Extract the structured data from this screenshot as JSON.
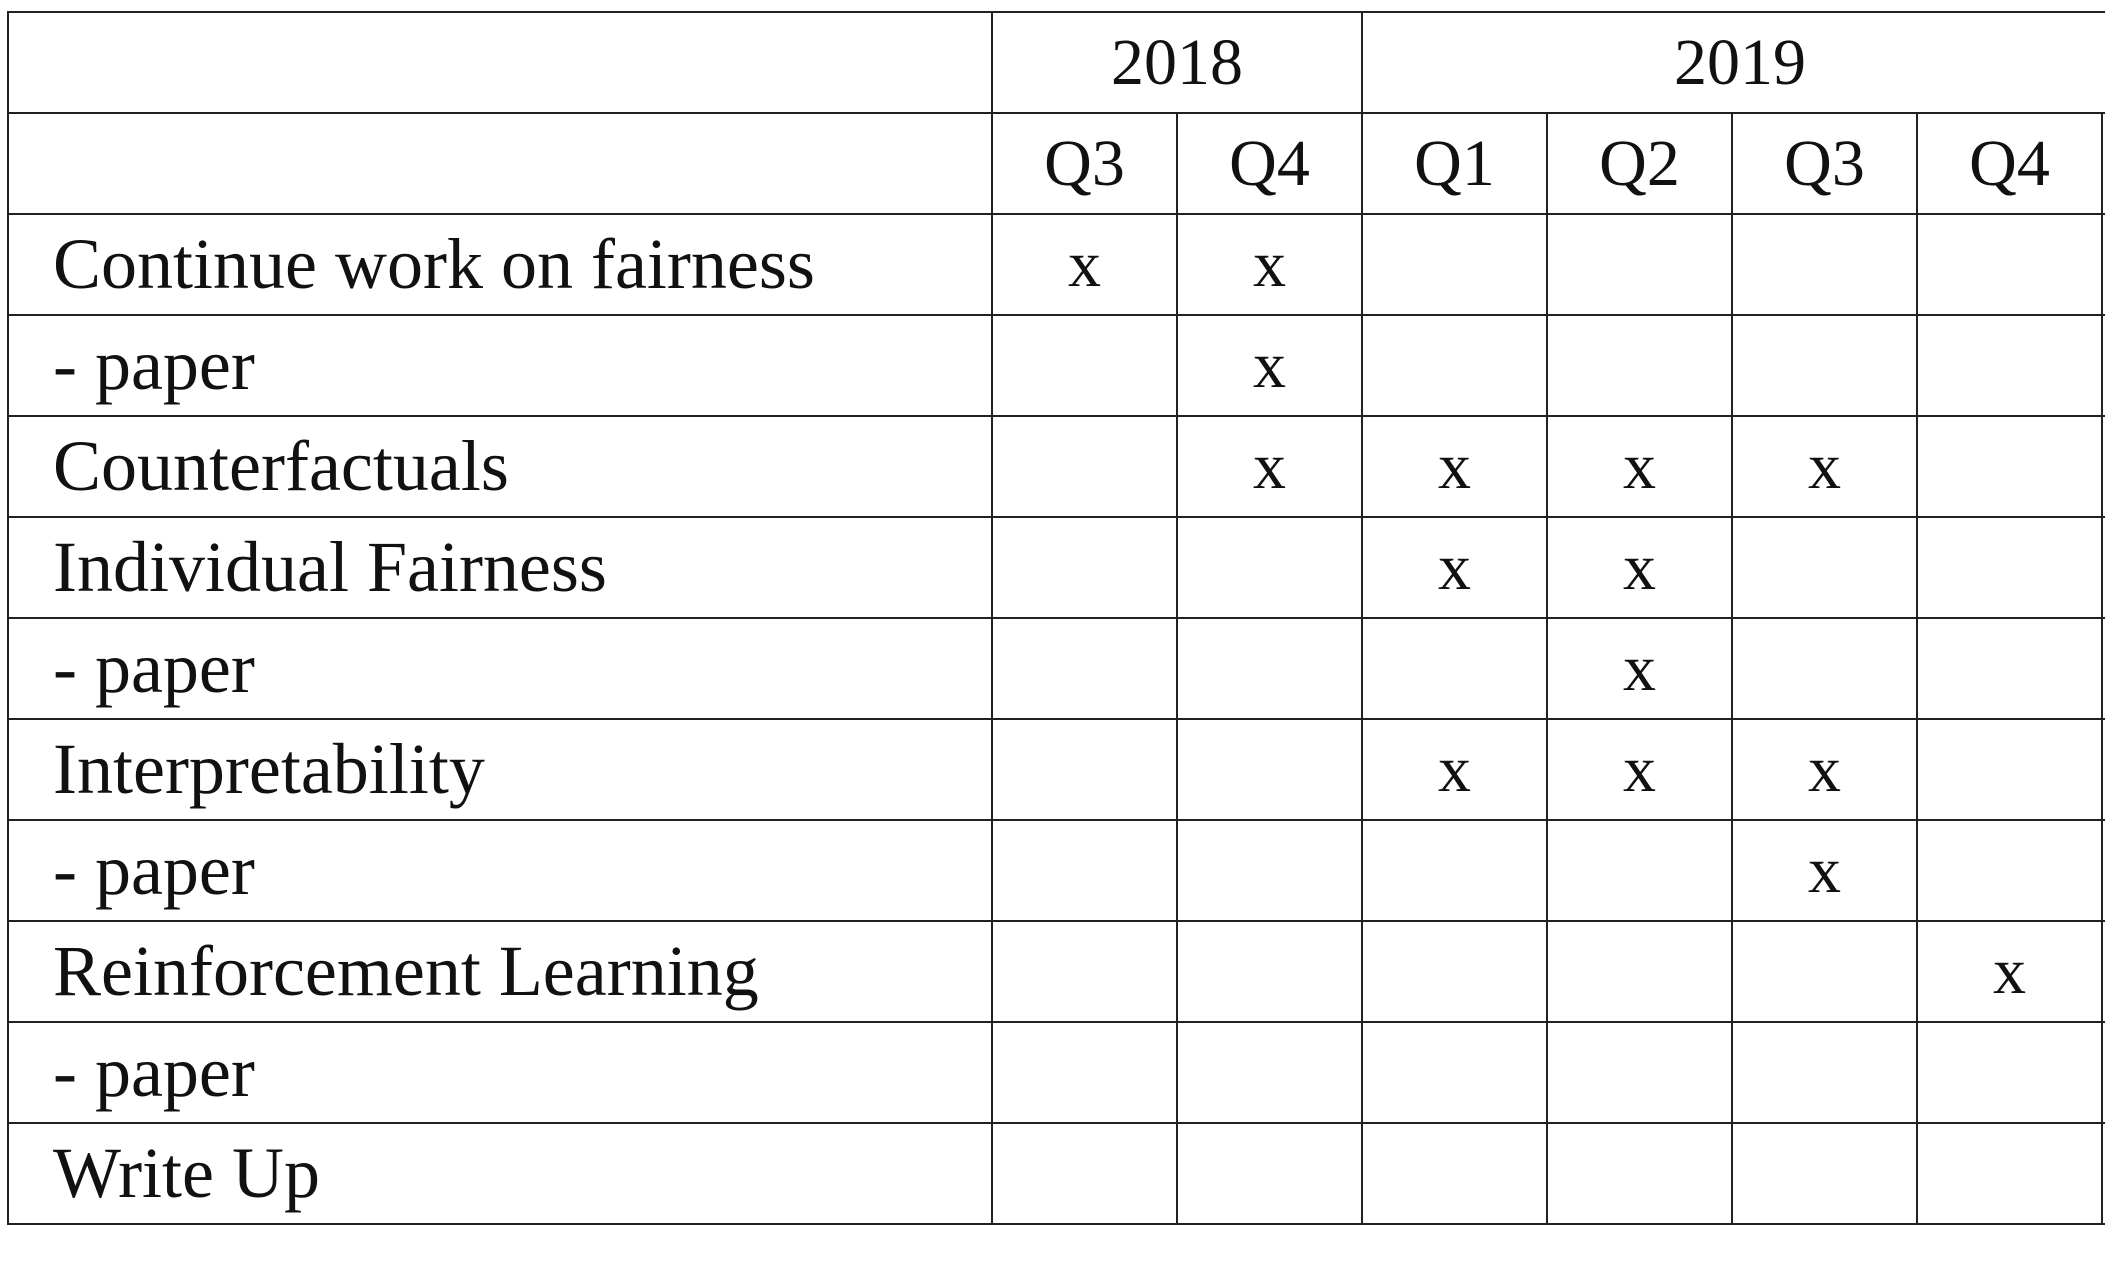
{
  "years": [
    {
      "label": "2018",
      "span": 2
    },
    {
      "label": "2019",
      "span": 4
    }
  ],
  "quarters": [
    "Q3",
    "Q4",
    "Q1",
    "Q2",
    "Q3",
    "Q4"
  ],
  "rows": [
    {
      "task": "Continue work on fairness",
      "marks": [
        "x",
        "x",
        "",
        "",
        "",
        ""
      ]
    },
    {
      "task": "- paper",
      "marks": [
        "",
        "x",
        "",
        "",
        "",
        ""
      ]
    },
    {
      "task": "Counterfactuals",
      "marks": [
        "",
        "x",
        "x",
        "x",
        "x",
        ""
      ]
    },
    {
      "task": "Individual Fairness",
      "marks": [
        "",
        "",
        "x",
        "x",
        "",
        ""
      ]
    },
    {
      "task": "- paper",
      "marks": [
        "",
        "",
        "",
        "x",
        "",
        ""
      ]
    },
    {
      "task": "Interpretability",
      "marks": [
        "",
        "",
        "x",
        "x",
        "x",
        ""
      ]
    },
    {
      "task": "- paper",
      "marks": [
        "",
        "",
        "",
        "",
        "x",
        ""
      ]
    },
    {
      "task": "Reinforcement Learning",
      "marks": [
        "",
        "",
        "",
        "",
        "",
        "x"
      ]
    },
    {
      "task": "- paper",
      "marks": [
        "",
        "",
        "",
        "",
        "",
        ""
      ]
    },
    {
      "task": "Write Up",
      "marks": [
        "",
        "",
        "",
        "",
        "",
        ""
      ]
    }
  ]
}
